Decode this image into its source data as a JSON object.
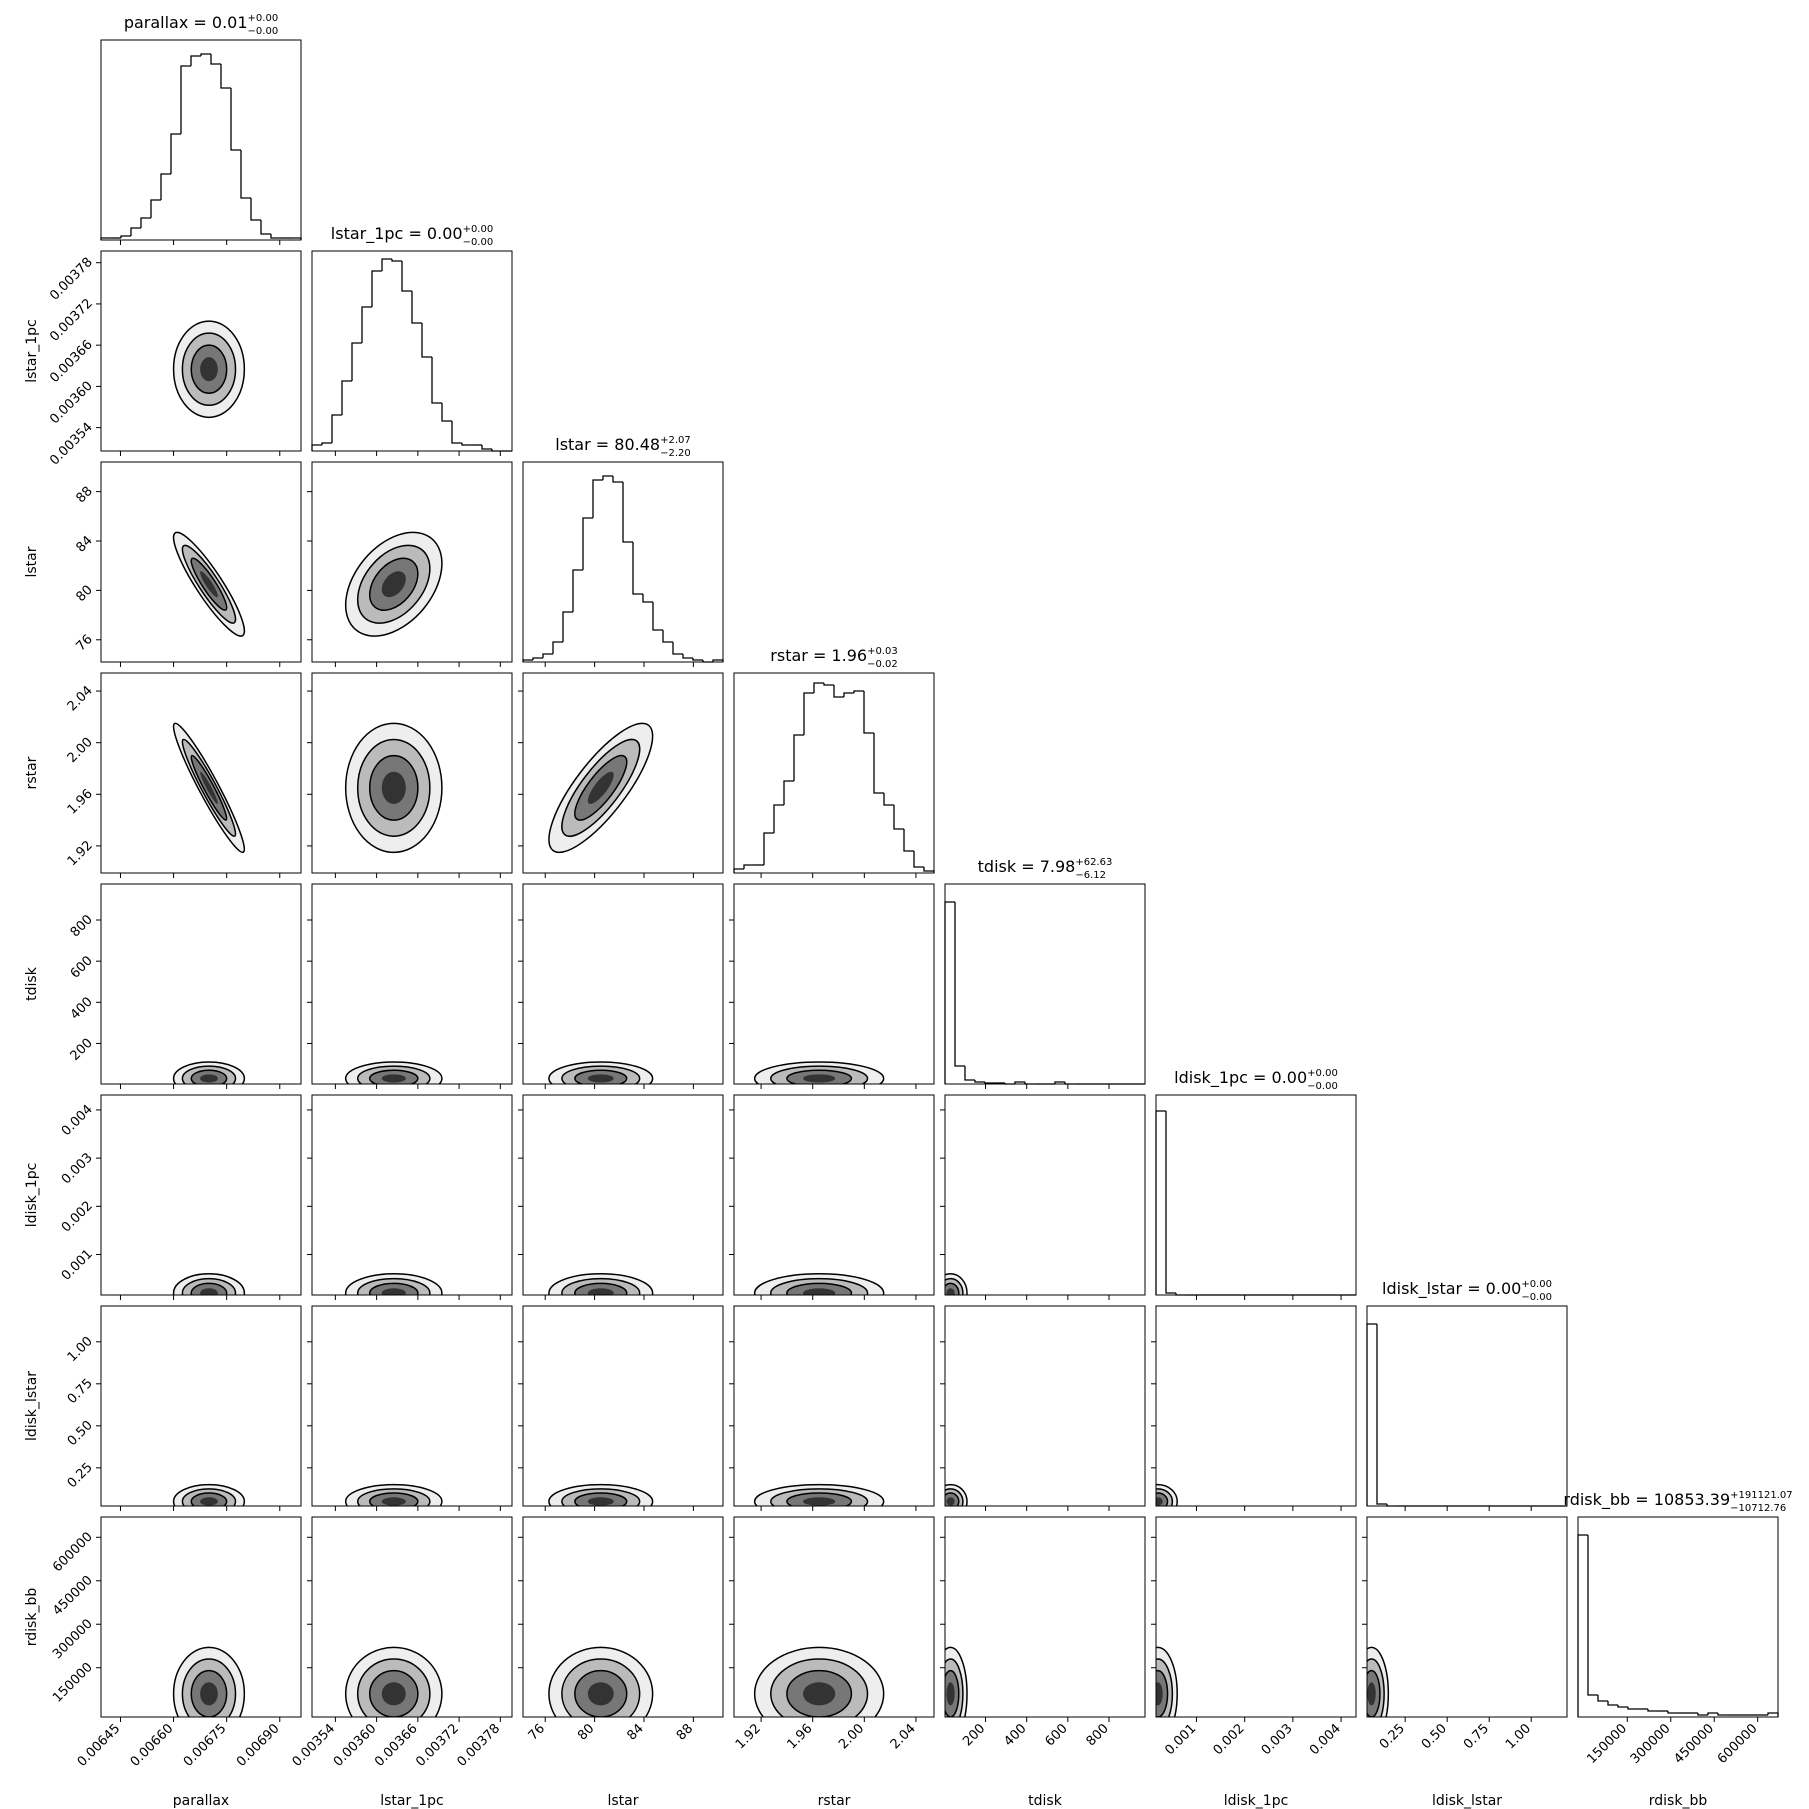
{
  "chart_data": {
    "type": "corner",
    "color": "#000000",
    "count_lim": [
      0,
      100
    ],
    "params": [
      {
        "name": "parallax",
        "title": "parallax = 0.01",
        "title_plus": "+0.00",
        "title_minus": "−0.00",
        "xlim": [
          0.006395,
          0.00696
        ],
        "ticks": [
          0.00645,
          {
            "value": 0.0066,
            "label": "0.00660"
          },
          0.00675,
          {
            "value": 0.0069,
            "label": "0.00690"
          }
        ],
        "counts": [
          1,
          1,
          2,
          6,
          11,
          20,
          33,
          53,
          87,
          92,
          93,
          88,
          76,
          45,
          21,
          10,
          3,
          1,
          1,
          1
        ],
        "center": 0.0067,
        "sigma": 5e-05
      },
      {
        "name": "lstar_1pc",
        "title": "lstar_1pc = 0.00",
        "title_plus": "+0.00",
        "title_minus": "−0.00",
        "xlim": [
          0.003506,
          0.003797
        ],
        "ticks": [
          0.00354,
          {
            "value": 0.0036,
            "label": "0.00360"
          },
          0.00366,
          0.00372,
          0.00378
        ],
        "counts": [
          3,
          4,
          18,
          35,
          54,
          72,
          90,
          96,
          95,
          80,
          64,
          47,
          24,
          15,
          4,
          3,
          3,
          1,
          0,
          0
        ],
        "center": 0.003625,
        "sigma": 3.5e-05
      },
      {
        "name": "lstar",
        "title": "lstar = 80.48",
        "title_plus": "+2.07",
        "title_minus": "−2.20",
        "xlim": [
          74.2,
          90.4
        ],
        "ticks": [
          76,
          80,
          84,
          88
        ],
        "counts": [
          1,
          2,
          4,
          10,
          25,
          46,
          72,
          91,
          93,
          90,
          60,
          34,
          30,
          16,
          10,
          4,
          2,
          1,
          0,
          1
        ],
        "center": 80.5,
        "sigma": 2.1
      },
      {
        "name": "rstar",
        "title": "rstar = 1.96",
        "title_plus": "+0.03",
        "title_minus": "−0.02",
        "xlim": [
          1.899,
          2.054
        ],
        "ticks": [
          1.92,
          1.96,
          {
            "value": 2,
            "label": "2.00"
          },
          2.04
        ],
        "counts": [
          2,
          4,
          4,
          20,
          34,
          46,
          69,
          90,
          95,
          94,
          88,
          90,
          91,
          70,
          40,
          34,
          22,
          11,
          3,
          1
        ],
        "center": 1.965,
        "sigma": 0.025
      },
      {
        "name": "tdisk",
        "title": "tdisk = 7.98",
        "title_plus": "+62.63",
        "title_minus": "−6.12",
        "xlim": [
          3,
          975
        ],
        "ticks": [
          200,
          400,
          600,
          800
        ],
        "counts": [
          91,
          9,
          2,
          1,
          0.5,
          0.5,
          0,
          1,
          0,
          0,
          0,
          1,
          0,
          0,
          0,
          0,
          0,
          0,
          0,
          0
        ],
        "center": 30,
        "sigma": 40
      },
      {
        "name": "ldisk_1pc",
        "title": "ldisk_1pc = 0.00",
        "title_plus": "+0.00",
        "title_minus": "−0.00",
        "xlim": [
          0.00016,
          0.00431
        ],
        "ticks": [
          0.001,
          0.002,
          0.003,
          0.004
        ],
        "counts": [
          92,
          1,
          0,
          0,
          0,
          0,
          0,
          0,
          0,
          0,
          0,
          0,
          0,
          0,
          0,
          0,
          0,
          0,
          0,
          0
        ],
        "center": 0.0002,
        "sigma": 0.0002
      },
      {
        "name": "ldisk_lstar",
        "title": "ldisk_lstar = 0.00",
        "title_plus": "+0.00",
        "title_minus": "−0.00",
        "xlim": [
          0.023,
          1.213
        ],
        "ticks": [
          0.25,
          {
            "value": 0.5,
            "label": "0.50"
          },
          0.75,
          {
            "value": 1,
            "label": "1.00"
          }
        ],
        "counts": [
          91,
          1,
          0,
          0,
          0,
          0,
          0,
          0,
          0,
          0,
          0,
          0,
          0,
          0,
          0,
          0,
          0,
          0,
          0,
          0
        ],
        "center": 0.05,
        "sigma": 0.05
      },
      {
        "name": "rdisk_bb",
        "title": "rdisk_bb = 10853.39",
        "title_plus": "+191121.07",
        "title_minus": "−10712.76",
        "xlim": [
          -20000,
          670000
        ],
        "ticks": [
          150000,
          300000,
          450000,
          600000
        ],
        "counts": [
          91,
          11,
          8,
          6,
          5,
          4,
          4,
          3,
          3,
          2,
          2,
          2,
          1,
          2,
          1,
          1,
          1,
          1,
          1,
          2
        ],
        "center": 60000,
        "sigma": 80000
      }
    ],
    "correlation": [
      [
        0
      ],
      [
        -0.9,
        0.4
      ],
      [
        -0.95,
        0,
        0.8
      ],
      [
        0,
        0,
        0,
        0
      ],
      [
        0,
        0,
        0,
        0,
        0
      ],
      [
        0,
        0,
        0,
        0,
        0,
        0
      ],
      [
        0,
        0,
        0,
        0,
        0,
        0,
        0
      ]
    ]
  }
}
